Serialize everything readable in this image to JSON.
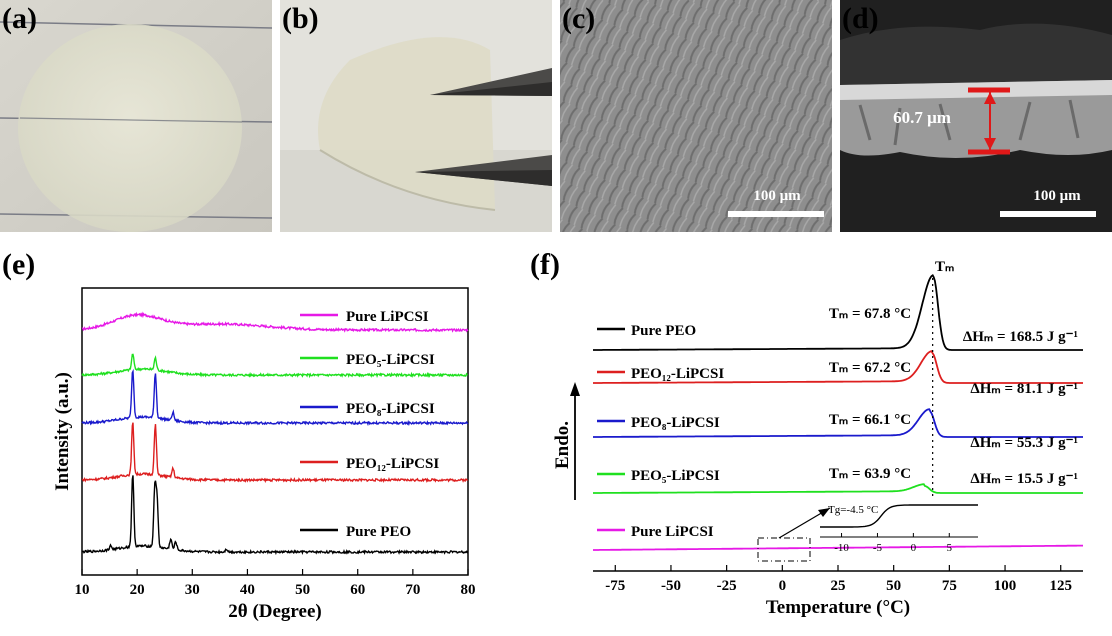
{
  "panels": {
    "a": {
      "label": "(a)"
    },
    "b": {
      "label": "(b)"
    },
    "c": {
      "label": "(c)",
      "scale_bar": "100 μm"
    },
    "d": {
      "label": "(d)",
      "scale_bar": "100 μm",
      "thickness": "60.7 μm"
    },
    "e": {
      "label": "(e)"
    },
    "f": {
      "label": "(f)"
    }
  },
  "chart_data": [
    {
      "panel": "e",
      "type": "line",
      "xlabel": "2θ (Degree)",
      "ylabel": "Intensity (a.u.)",
      "xlim": [
        10,
        80
      ],
      "xticks": [
        10,
        20,
        30,
        40,
        50,
        60,
        70,
        80
      ],
      "yticks": false,
      "series": [
        {
          "name": "Pure LiPCSI",
          "color": "#e619e6",
          "peaks": []
        },
        {
          "name": "PEO₅-LiPCSI",
          "color": "#1fe01f",
          "peaks": [
            19.2,
            23.3
          ]
        },
        {
          "name": "PEO₈-LiPCSI",
          "color": "#1a1acc",
          "peaks": [
            19.2,
            23.3,
            26.5
          ]
        },
        {
          "name": "PEO₁₂-LiPCSI",
          "color": "#dd1f1f",
          "peaks": [
            19.2,
            23.3,
            26.5
          ]
        },
        {
          "name": "Pure PEO",
          "color": "#000000",
          "peaks": [
            15.2,
            19.2,
            23.2,
            23.6,
            26.1,
            27.0,
            36.2
          ]
        }
      ]
    },
    {
      "panel": "f",
      "type": "line",
      "xlabel": "Temperature (°C)",
      "ylabel": "Endo.",
      "xlim": [
        -85,
        135
      ],
      "xticks": [
        -75,
        -50,
        -25,
        0,
        25,
        50,
        75,
        100,
        125
      ],
      "tm_marker": "Tₘ",
      "series": [
        {
          "name": "Pure PEO",
          "color": "#000000",
          "tm": "Tₘ = 67.8 °C",
          "tm_value": 67.8,
          "dh": "ΔHₘ = 168.5 J g⁻¹",
          "dh_value": 168.5
        },
        {
          "name": "PEO₁₂-LiPCSI",
          "color": "#dd1f1f",
          "tm": "Tₘ = 67.2 °C",
          "tm_value": 67.2,
          "dh": "ΔHₘ = 81.1 J g⁻¹",
          "dh_value": 81.1
        },
        {
          "name": "PEO₈-LiPCSI",
          "color": "#1a1acc",
          "tm": "Tₘ = 66.1 °C",
          "tm_value": 66.1,
          "dh": "ΔHₘ = 55.3 J g⁻¹",
          "dh_value": 55.3
        },
        {
          "name": "PEO₅-LiPCSI",
          "color": "#1fe01f",
          "tm": "Tₘ = 63.9 °C",
          "tm_value": 63.9,
          "dh": "ΔHₘ = 15.5 J g⁻¹",
          "dh_value": 15.5
        },
        {
          "name": "Pure LiPCSI",
          "color": "#e619e6",
          "tm": "",
          "dh": ""
        }
      ],
      "inset": {
        "label": "Tg=-4.5 °C",
        "tg_value": -4.5,
        "xticks": [
          -10,
          -5,
          0,
          5
        ]
      }
    }
  ]
}
